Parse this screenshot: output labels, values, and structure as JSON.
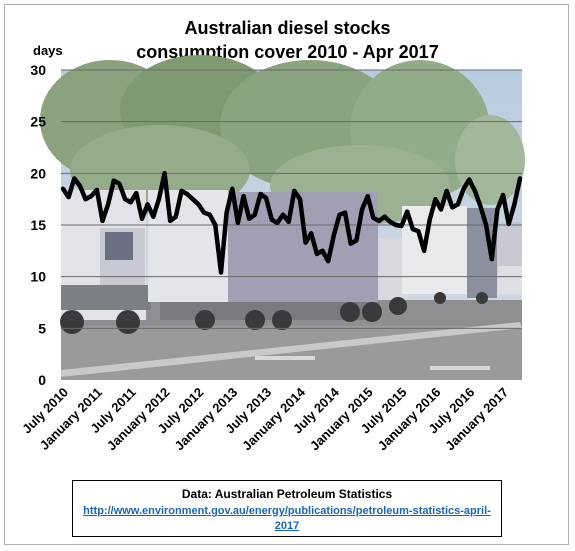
{
  "title_line1": "Australian  diesel stocks",
  "title_line2": "consumption  cover 2010 - Apr 2017",
  "source": {
    "title": "Data: Australian Petroleum Statistics",
    "link": "http://www.environment.gov.au/energy/publications/petroleum-statistics-april-2017"
  },
  "chart_data": {
    "type": "line",
    "title": "Australian diesel stocks consumption cover 2010 - Apr 2017",
    "ylabel": "days",
    "xlabel": "",
    "ylim": [
      0,
      30
    ],
    "yticks": [
      0,
      5,
      10,
      15,
      20,
      25,
      30
    ],
    "grid": true,
    "background": "photo of trucks on a highway",
    "line_color": "#000000",
    "x_tick_labels": [
      "July 2010",
      "January 2011",
      "July 2011",
      "January 2012",
      "July 2012",
      "January 2013",
      "July 2013",
      "January 2014",
      "July 2014",
      "January 2015",
      "July 2015",
      "January 2016",
      "July 2016",
      "January 2017"
    ],
    "x": [
      "2010-07",
      "2010-08",
      "2010-09",
      "2010-10",
      "2010-11",
      "2010-12",
      "2011-01",
      "2011-02",
      "2011-03",
      "2011-04",
      "2011-05",
      "2011-06",
      "2011-07",
      "2011-08",
      "2011-09",
      "2011-10",
      "2011-11",
      "2011-12",
      "2012-01",
      "2012-02",
      "2012-03",
      "2012-04",
      "2012-05",
      "2012-06",
      "2012-07",
      "2012-08",
      "2012-09",
      "2012-10",
      "2012-11",
      "2012-12",
      "2013-01",
      "2013-02",
      "2013-03",
      "2013-04",
      "2013-05",
      "2013-06",
      "2013-07",
      "2013-08",
      "2013-09",
      "2013-10",
      "2013-11",
      "2013-12",
      "2014-01",
      "2014-02",
      "2014-03",
      "2014-04",
      "2014-05",
      "2014-06",
      "2014-07",
      "2014-08",
      "2014-09",
      "2014-10",
      "2014-11",
      "2014-12",
      "2015-01",
      "2015-02",
      "2015-03",
      "2015-04",
      "2015-05",
      "2015-06",
      "2015-07",
      "2015-08",
      "2015-09",
      "2015-10",
      "2015-11",
      "2015-12",
      "2016-01",
      "2016-02",
      "2016-03",
      "2016-04",
      "2016-05",
      "2016-06",
      "2016-07",
      "2016-08",
      "2016-09",
      "2016-10",
      "2016-11",
      "2016-12",
      "2017-01",
      "2017-02",
      "2017-03",
      "2017-04"
    ],
    "series": [
      {
        "values": [
          18.5,
          17.7,
          19.5,
          18.8,
          17.5,
          17.8,
          18.4,
          15.4,
          17.0,
          19.3,
          19.0,
          17.5,
          17.2,
          18.1,
          15.6,
          17.0,
          15.8,
          17.5,
          20.0,
          15.4,
          15.8,
          18.3,
          18.0,
          17.5,
          17.0,
          16.2,
          16.0,
          15.0,
          10.4,
          16.2,
          18.5,
          15.2,
          17.8,
          15.6,
          16.0,
          18.0,
          17.6,
          15.5,
          15.2,
          16.0,
          15.3,
          18.3,
          17.5,
          13.3,
          14.2,
          12.2,
          12.5,
          11.5,
          14.0,
          16.0,
          16.2,
          13.2,
          13.5,
          16.5,
          17.8,
          15.7,
          15.4,
          15.8,
          15.3,
          15.0,
          14.9,
          16.3,
          14.6,
          14.4,
          12.5,
          15.5,
          17.5,
          16.5,
          18.3,
          16.7,
          17.0,
          18.5,
          19.4,
          18.3,
          16.8,
          15.0,
          11.7,
          16.5,
          17.9,
          15.1,
          17.0,
          19.5
        ]
      }
    ]
  }
}
